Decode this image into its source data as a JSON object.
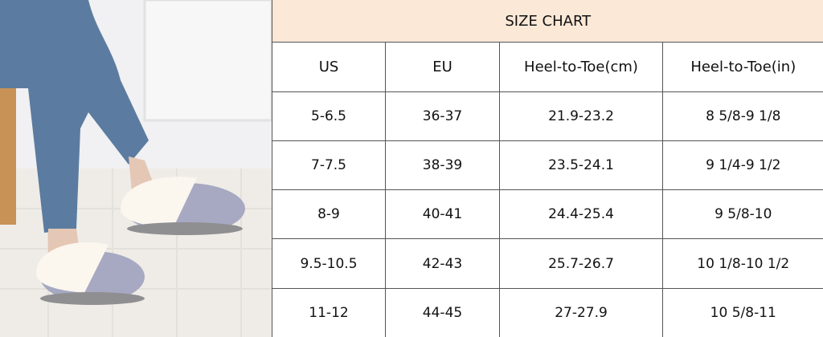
{
  "size_chart": {
    "title": "SIZE CHART",
    "columns": [
      "US",
      "EU",
      "Heel-to-Toe(cm)",
      "Heel-to-Toe(in)"
    ],
    "rows": [
      [
        "5-6.5",
        "36-37",
        "21.9-23.2",
        "8 5/8-9 1/8"
      ],
      [
        "7-7.5",
        "38-39",
        "23.5-24.1",
        "9 1/4-9 1/2"
      ],
      [
        "8-9",
        "40-41",
        "24.4-25.4",
        "9 5/8-10"
      ],
      [
        "9.5-10.5",
        "42-43",
        "25.7-26.7",
        "10 1/8-10 1/2"
      ],
      [
        "11-12",
        "44-45",
        "27-27.9",
        "10 5/8-11"
      ]
    ],
    "header_bg": "#fbe8d6"
  },
  "photo": {
    "subject": "slipper-product-photo"
  }
}
